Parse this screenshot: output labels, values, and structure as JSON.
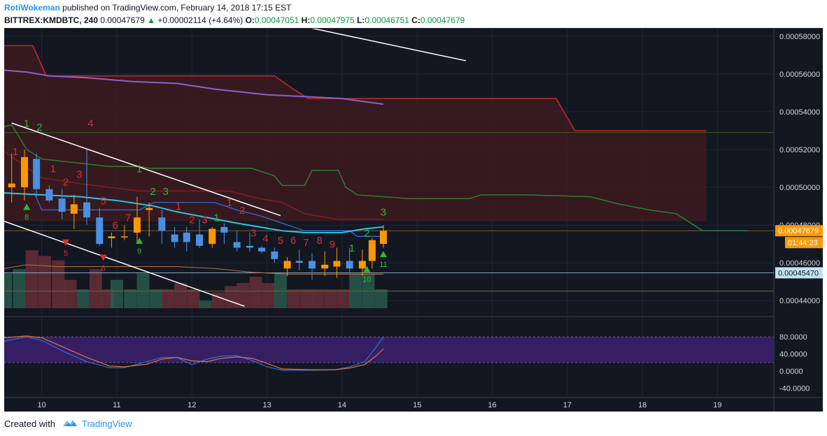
{
  "header": {
    "author": "RotiWokeman",
    "published_text": "published on TradingView.com, February 14, 2018 17:15 EST",
    "symbol": "BITTREX:KMDBTC, 240",
    "last": "0.00047679",
    "change": "+0.00002114 (+4.64%)",
    "o_label": "O:",
    "o": "0.00047051",
    "h_label": "H:",
    "h": "0.00047975",
    "l_label": "L:",
    "l": "0.00046751",
    "c_label": "C:",
    "c": "0.00047679"
  },
  "footer": {
    "created_with": "Created with",
    "brand": "TradingView"
  },
  "colors": {
    "background": "#131722",
    "up_candle": "#ff9800",
    "down_candle": "#4a90e2",
    "td_red": "#d32f2f",
    "td_green": "#2eb82e",
    "ichimoku_red": "#c62828",
    "ichimoku_green": "#2e7d32",
    "cloud_fill": "#3d1a1f",
    "ma_purple": "#8e5fc7",
    "ma_cyan": "#29c5e6",
    "stoch_fill": "#3b1f6b",
    "stoch_k": "#2f6fd6",
    "stoch_d": "#e0703a"
  },
  "chart_data": {
    "type": "candlestick",
    "symbol": "BITTREX:KMDBTC",
    "interval": "240",
    "x_axis": {
      "ticks": [
        "10",
        "11",
        "12",
        "13",
        "14",
        "15",
        "16",
        "17",
        "18",
        "19"
      ],
      "range": [
        9.5,
        19.75
      ]
    },
    "price_axis": {
      "ticks": [
        "0.00058000",
        "0.00056000",
        "0.00054000",
        "0.00052000",
        "0.00050000",
        "0.00048000",
        "0.00046000",
        "0.00044000"
      ],
      "range": [
        0.000436,
        0.000584
      ]
    },
    "labels": {
      "last_price": "0.00047679",
      "countdown": "01:44:23",
      "support_price": "0.00045470"
    },
    "candles": [
      {
        "x": 9.6,
        "o": 0.0005,
        "h": 0.000518,
        "l": 0.000492,
        "c": 0.000502
      },
      {
        "x": 9.77,
        "o": 0.0005,
        "h": 0.00052,
        "l": 0.000493,
        "c": 0.000516
      },
      {
        "x": 9.93,
        "o": 0.000515,
        "h": 0.000518,
        "l": 0.000495,
        "c": 0.000499
      },
      {
        "x": 10.1,
        "o": 0.000499,
        "h": 0.000501,
        "l": 0.000492,
        "c": 0.000493
      },
      {
        "x": 10.27,
        "o": 0.000494,
        "h": 0.000499,
        "l": 0.000483,
        "c": 0.000487
      },
      {
        "x": 10.43,
        "o": 0.000486,
        "h": 0.000496,
        "l": 0.000478,
        "c": 0.000491
      },
      {
        "x": 10.6,
        "o": 0.000492,
        "h": 0.00052,
        "l": 0.00048,
        "c": 0.000484
      },
      {
        "x": 10.77,
        "o": 0.000484,
        "h": 0.000489,
        "l": 0.000469,
        "c": 0.00047
      },
      {
        "x": 10.93,
        "o": 0.000473,
        "h": 0.000476,
        "l": 0.000468,
        "c": 0.000474
      },
      {
        "x": 11.1,
        "o": 0.000474,
        "h": 0.00048,
        "l": 0.000472,
        "c": 0.000474
      },
      {
        "x": 11.27,
        "o": 0.000476,
        "h": 0.000495,
        "l": 0.000471,
        "c": 0.000484
      },
      {
        "x": 11.43,
        "o": 0.000488,
        "h": 0.000492,
        "l": 0.000474,
        "c": 0.000489
      },
      {
        "x": 11.6,
        "o": 0.000484,
        "h": 0.000488,
        "l": 0.00047,
        "c": 0.000477
      },
      {
        "x": 11.77,
        "o": 0.000475,
        "h": 0.000479,
        "l": 0.000468,
        "c": 0.000471
      },
      {
        "x": 11.93,
        "o": 0.000476,
        "h": 0.000479,
        "l": 0.000466,
        "c": 0.000471
      },
      {
        "x": 12.1,
        "o": 0.000475,
        "h": 0.000483,
        "l": 0.000468,
        "c": 0.000469
      },
      {
        "x": 12.27,
        "o": 0.00047,
        "h": 0.000479,
        "l": 0.000468,
        "c": 0.000478
      },
      {
        "x": 12.43,
        "o": 0.000479,
        "h": 0.000481,
        "l": 0.00047,
        "c": 0.000476
      },
      {
        "x": 12.6,
        "o": 0.000471,
        "h": 0.000477,
        "l": 0.000466,
        "c": 0.000468
      },
      {
        "x": 12.77,
        "o": 0.000469,
        "h": 0.000476,
        "l": 0.000466,
        "c": 0.000468
      },
      {
        "x": 12.93,
        "o": 0.000468,
        "h": 0.000469,
        "l": 0.000465,
        "c": 0.000466
      },
      {
        "x": 13.1,
        "o": 0.000466,
        "h": 0.000468,
        "l": 0.00046,
        "c": 0.000462
      },
      {
        "x": 13.27,
        "o": 0.000457,
        "h": 0.000463,
        "l": 0.000453,
        "c": 0.000461
      },
      {
        "x": 13.43,
        "o": 0.000461,
        "h": 0.000467,
        "l": 0.000456,
        "c": 0.00046
      },
      {
        "x": 13.6,
        "o": 0.000461,
        "h": 0.000465,
        "l": 0.000451,
        "c": 0.000457
      },
      {
        "x": 13.77,
        "o": 0.000457,
        "h": 0.000466,
        "l": 0.000453,
        "c": 0.000459
      },
      {
        "x": 13.93,
        "o": 0.000458,
        "h": 0.000468,
        "l": 0.000452,
        "c": 0.000461
      },
      {
        "x": 14.1,
        "o": 0.000461,
        "h": 0.000468,
        "l": 0.000455,
        "c": 0.000457
      },
      {
        "x": 14.27,
        "o": 0.000457,
        "h": 0.000467,
        "l": 0.000453,
        "c": 0.000461
      },
      {
        "x": 14.4,
        "o": 0.000461,
        "h": 0.000473,
        "l": 0.000457,
        "c": 0.000472
      },
      {
        "x": 14.55,
        "o": 0.00047,
        "h": 0.00048,
        "l": 0.000468,
        "c": 0.000477
      }
    ],
    "td_sequential": [
      {
        "x": 9.65,
        "p": 0.000517,
        "n": "1",
        "color": "red"
      },
      {
        "x": 9.8,
        "p": 0.000532,
        "n": "1",
        "color": "green"
      },
      {
        "x": 9.97,
        "p": 0.00053,
        "n": "2",
        "color": "green"
      },
      {
        "x": 10.15,
        "p": 0.000508,
        "n": "1",
        "color": "red"
      },
      {
        "x": 10.32,
        "p": 0.000501,
        "n": "2",
        "color": "red"
      },
      {
        "x": 10.5,
        "p": 0.000505,
        "n": "3",
        "color": "red"
      },
      {
        "x": 10.65,
        "p": 0.000532,
        "n": "4",
        "color": "red"
      },
      {
        "x": 10.82,
        "p": 0.000491,
        "n": "5",
        "color": "red"
      },
      {
        "x": 10.98,
        "p": 0.000478,
        "n": "6",
        "color": "red"
      },
      {
        "x": 11.15,
        "p": 0.000482,
        "n": "7",
        "color": "red"
      },
      {
        "x": 11.3,
        "p": 0.000508,
        "n": "1",
        "color": "green"
      },
      {
        "x": 11.48,
        "p": 0.000496,
        "n": "2",
        "color": "green"
      },
      {
        "x": 11.65,
        "p": 0.000496,
        "n": "3",
        "color": "green"
      },
      {
        "x": 11.82,
        "p": 0.000488,
        "n": "1",
        "color": "red"
      },
      {
        "x": 12.0,
        "p": 0.000481,
        "n": "2",
        "color": "red"
      },
      {
        "x": 12.17,
        "p": 0.000481,
        "n": "3",
        "color": "red"
      },
      {
        "x": 12.33,
        "p": 0.000482,
        "n": "1",
        "color": "green"
      },
      {
        "x": 12.5,
        "p": 0.00049,
        "n": "1",
        "color": "red"
      },
      {
        "x": 12.67,
        "p": 0.000486,
        "n": "2",
        "color": "red"
      },
      {
        "x": 12.82,
        "p": 0.000474,
        "n": "3",
        "color": "red"
      },
      {
        "x": 12.98,
        "p": 0.000471,
        "n": "4",
        "color": "red"
      },
      {
        "x": 13.18,
        "p": 0.00047,
        "n": "5",
        "color": "red"
      },
      {
        "x": 13.35,
        "p": 0.00047,
        "n": "6",
        "color": "red"
      },
      {
        "x": 13.52,
        "p": 0.000469,
        "n": "7",
        "color": "red"
      },
      {
        "x": 13.7,
        "p": 0.00047,
        "n": "8",
        "color": "red"
      },
      {
        "x": 13.87,
        "p": 0.000468,
        "n": "9",
        "color": "red"
      },
      {
        "x": 14.13,
        "p": 0.000466,
        "n": "1",
        "color": "green"
      },
      {
        "x": 14.33,
        "p": 0.000474,
        "n": "2",
        "color": "green"
      },
      {
        "x": 14.55,
        "p": 0.000485,
        "n": "3",
        "color": "green"
      }
    ],
    "setup_markers": [
      {
        "x": 9.8,
        "p": 0.000488,
        "dir": "up",
        "n": "8"
      },
      {
        "x": 10.32,
        "p": 0.000469,
        "dir": "down",
        "n": "5"
      },
      {
        "x": 10.82,
        "p": 0.000461,
        "dir": "down",
        "n": "6"
      },
      {
        "x": 11.3,
        "p": 0.00047,
        "dir": "up",
        "n": "9"
      },
      {
        "x": 14.33,
        "p": 0.000455,
        "dir": "up",
        "n": "10"
      },
      {
        "x": 14.55,
        "p": 0.000463,
        "dir": "up",
        "n": "11"
      }
    ],
    "ichimoku_red_line": [
      [
        9.5,
        0.000575
      ],
      [
        9.88,
        0.000575
      ],
      [
        10.06,
        0.000559
      ],
      [
        12.5,
        0.000559
      ],
      [
        13.1,
        0.000559
      ],
      [
        13.35,
        0.000552
      ],
      [
        13.55,
        0.000547
      ],
      [
        16.85,
        0.000547
      ],
      [
        17.1,
        0.00053
      ],
      [
        18.85,
        0.00053
      ]
    ],
    "ichimoku_green_line": [
      [
        9.5,
        0.000532
      ],
      [
        9.6,
        0.000533
      ],
      [
        9.8,
        0.00052
      ],
      [
        10.0,
        0.000515
      ],
      [
        10.9,
        0.000511
      ],
      [
        11.3,
        0.000511
      ],
      [
        11.45,
        0.00051
      ],
      [
        12.8,
        0.00051
      ],
      [
        13.1,
        0.000506
      ],
      [
        13.2,
        0.000501
      ],
      [
        13.5,
        0.000501
      ],
      [
        13.6,
        0.000509
      ],
      [
        13.95,
        0.000509
      ],
      [
        14.05,
        0.0005
      ],
      [
        14.2,
        0.000496
      ],
      [
        14.9,
        0.000494
      ],
      [
        15.7,
        0.000494
      ],
      [
        15.85,
        0.000496
      ],
      [
        16.45,
        0.000496
      ],
      [
        17.3,
        0.000495
      ],
      [
        17.7,
        0.000491
      ],
      [
        18.1,
        0.000488
      ],
      [
        18.45,
        0.000486
      ],
      [
        18.8,
        0.000477
      ],
      [
        19.4,
        0.000477
      ]
    ],
    "ichimoku_cloud_bottom": [
      [
        9.5,
        0.000482
      ],
      [
        18.85,
        0.000482
      ]
    ],
    "kijun_line": [
      [
        9.5,
        0.000519
      ],
      [
        9.75,
        0.000512
      ],
      [
        10.0,
        0.000505
      ],
      [
        10.5,
        0.000502
      ],
      [
        11.3,
        0.000498
      ],
      [
        12.5,
        0.000498
      ],
      [
        12.9,
        0.000494
      ],
      [
        13.2,
        0.000492
      ],
      [
        13.5,
        0.000486
      ],
      [
        13.95,
        0.000483
      ],
      [
        14.55,
        0.000483
      ]
    ],
    "tenkan_line": [
      [
        9.9,
        0.000497
      ],
      [
        10.0,
        0.000488
      ],
      [
        11.3,
        0.000488
      ],
      [
        11.5,
        0.000492
      ],
      [
        12.3,
        0.000492
      ],
      [
        12.6,
        0.000488
      ],
      [
        12.9,
        0.000485
      ],
      [
        13.2,
        0.000481
      ],
      [
        13.5,
        0.000477
      ],
      [
        14.1,
        0.000477
      ],
      [
        14.2,
        0.000474
      ],
      [
        14.55,
        0.000474
      ]
    ],
    "ma_purple": [
      [
        9.5,
        0.000562
      ],
      [
        9.8,
        0.000561
      ],
      [
        10.1,
        0.000559
      ],
      [
        10.6,
        0.000558
      ],
      [
        11.2,
        0.000556
      ],
      [
        11.8,
        0.000555
      ],
      [
        12.3,
        0.000552
      ],
      [
        13.0,
        0.000549
      ],
      [
        13.5,
        0.000548
      ],
      [
        14.0,
        0.000547
      ],
      [
        14.55,
        0.000544
      ]
    ],
    "ma_cyan": [
      [
        9.5,
        0.000497
      ],
      [
        10.0,
        0.000496
      ],
      [
        10.5,
        0.000495
      ],
      [
        11.0,
        0.000493
      ],
      [
        11.5,
        0.00049
      ],
      [
        11.8,
        0.000487
      ],
      [
        12.2,
        0.000484
      ],
      [
        12.6,
        0.000481
      ],
      [
        12.9,
        0.000479
      ],
      [
        13.2,
        0.000477
      ],
      [
        13.5,
        0.000476
      ],
      [
        14.0,
        0.000476
      ],
      [
        14.3,
        0.000478
      ],
      [
        14.55,
        0.000479
      ]
    ],
    "ma_orange": [
      [
        9.5,
        0.000457
      ],
      [
        9.8,
        0.000459
      ],
      [
        10.2,
        0.000458
      ],
      [
        10.8,
        0.000458
      ],
      [
        11.3,
        0.000458
      ],
      [
        11.8,
        0.000458
      ],
      [
        12.3,
        0.000457
      ],
      [
        12.8,
        0.000455
      ],
      [
        13.3,
        0.000454
      ],
      [
        13.8,
        0.000454
      ],
      [
        14.3,
        0.000454
      ],
      [
        14.55,
        0.000454
      ]
    ],
    "trendlines": [
      {
        "from": [
          9.6,
          0.000534
        ],
        "to": [
          13.18,
          0.000485
        ]
      },
      {
        "from": [
          9.5,
          0.000482
        ],
        "to": [
          12.7,
          0.000437
        ]
      },
      {
        "from": [
          13.15,
          0.000588
        ],
        "to": [
          15.65,
          0.000567
        ]
      }
    ],
    "support_line_upper": 0.000477,
    "support_line_lower": 0.0004547,
    "bottom_line": 0.000445,
    "volume": [
      {
        "x": 9.52,
        "h": 0.55,
        "t": "g"
      },
      {
        "x": 9.7,
        "h": 0.62,
        "t": "g"
      },
      {
        "x": 9.87,
        "h": 0.92,
        "t": "r"
      },
      {
        "x": 10.04,
        "h": 0.83,
        "t": "r"
      },
      {
        "x": 10.22,
        "h": 0.76,
        "t": "r"
      },
      {
        "x": 10.38,
        "h": 0.45,
        "t": "r"
      },
      {
        "x": 10.55,
        "h": 0.3,
        "t": "g"
      },
      {
        "x": 10.72,
        "h": 0.62,
        "t": "r"
      },
      {
        "x": 10.88,
        "h": 0.3,
        "t": "r"
      },
      {
        "x": 11.0,
        "h": 0.45,
        "t": "g"
      },
      {
        "x": 11.18,
        "h": 0.3,
        "t": "g"
      },
      {
        "x": 11.35,
        "h": 0.55,
        "t": "g"
      },
      {
        "x": 11.52,
        "h": 0.3,
        "t": "g"
      },
      {
        "x": 11.68,
        "h": 0.3,
        "t": "r"
      },
      {
        "x": 11.85,
        "h": 0.4,
        "t": "r"
      },
      {
        "x": 12.02,
        "h": 0.3,
        "t": "r"
      },
      {
        "x": 12.18,
        "h": 0.12,
        "t": "g"
      },
      {
        "x": 12.35,
        "h": 0.25,
        "t": "r"
      },
      {
        "x": 12.52,
        "h": 0.35,
        "t": "r"
      },
      {
        "x": 12.68,
        "h": 0.4,
        "t": "r"
      },
      {
        "x": 12.85,
        "h": 0.5,
        "t": "r"
      },
      {
        "x": 13.02,
        "h": 0.4,
        "t": "r"
      },
      {
        "x": 13.18,
        "h": 0.55,
        "t": "g"
      },
      {
        "x": 13.35,
        "h": 0.3,
        "t": "r"
      },
      {
        "x": 13.52,
        "h": 0.3,
        "t": "r"
      },
      {
        "x": 13.68,
        "h": 0.3,
        "t": "r"
      },
      {
        "x": 13.85,
        "h": 0.3,
        "t": "r"
      },
      {
        "x": 14.02,
        "h": 0.3,
        "t": "r"
      },
      {
        "x": 14.18,
        "h": 0.55,
        "t": "g"
      },
      {
        "x": 14.35,
        "h": 0.55,
        "t": "g"
      },
      {
        "x": 14.52,
        "h": 0.3,
        "t": "g"
      }
    ],
    "stoch_axis": {
      "ticks": [
        "80.0000",
        "40.0000",
        "0.0000",
        "-40.0000"
      ],
      "range": [
        -62,
        108
      ]
    },
    "stoch_band": [
      20,
      80
    ],
    "stoch_k": [
      [
        9.5,
        70
      ],
      [
        9.8,
        80
      ],
      [
        10.0,
        72
      ],
      [
        10.3,
        45
      ],
      [
        10.6,
        22
      ],
      [
        10.9,
        8
      ],
      [
        11.1,
        8
      ],
      [
        11.4,
        22
      ],
      [
        11.6,
        32
      ],
      [
        11.8,
        32
      ],
      [
        12.0,
        15
      ],
      [
        12.2,
        28
      ],
      [
        12.4,
        35
      ],
      [
        12.6,
        36
      ],
      [
        12.8,
        25
      ],
      [
        13.0,
        10
      ],
      [
        13.2,
        2
      ],
      [
        13.6,
        2
      ],
      [
        13.9,
        3
      ],
      [
        14.1,
        10
      ],
      [
        14.3,
        22
      ],
      [
        14.45,
        55
      ],
      [
        14.55,
        80
      ]
    ],
    "stoch_d": [
      [
        9.5,
        78
      ],
      [
        9.8,
        82
      ],
      [
        10.0,
        78
      ],
      [
        10.3,
        55
      ],
      [
        10.6,
        32
      ],
      [
        10.9,
        12
      ],
      [
        11.1,
        10
      ],
      [
        11.4,
        16
      ],
      [
        11.6,
        28
      ],
      [
        11.8,
        32
      ],
      [
        12.0,
        24
      ],
      [
        12.2,
        22
      ],
      [
        12.4,
        30
      ],
      [
        12.6,
        33
      ],
      [
        12.8,
        30
      ],
      [
        13.0,
        18
      ],
      [
        13.2,
        5
      ],
      [
        13.6,
        3
      ],
      [
        13.9,
        3
      ],
      [
        14.1,
        7
      ],
      [
        14.3,
        15
      ],
      [
        14.45,
        35
      ],
      [
        14.55,
        52
      ]
    ]
  }
}
